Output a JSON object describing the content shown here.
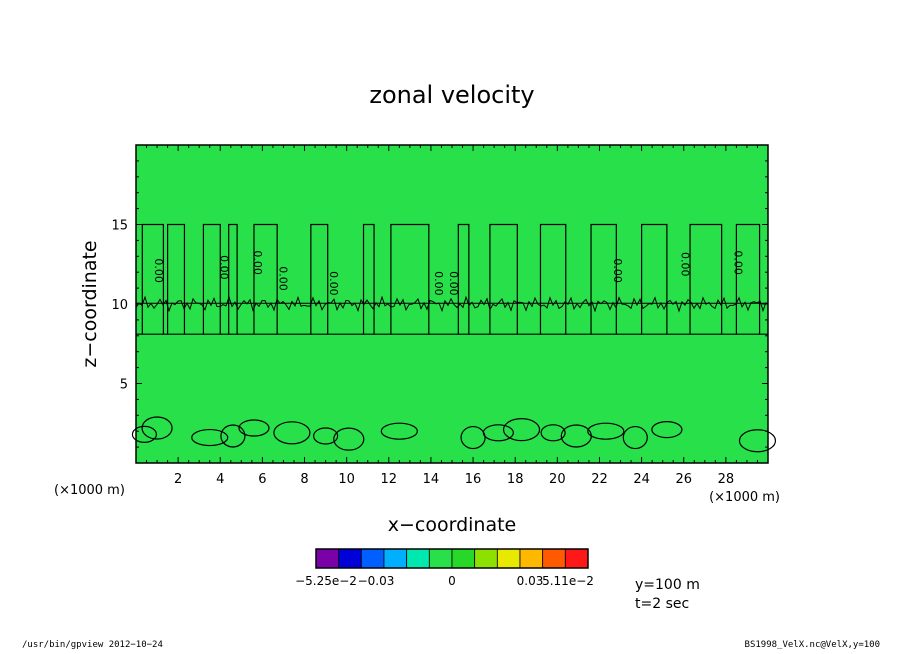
{
  "chart_data": {
    "type": "heatmap",
    "title": "zonal velocity",
    "xlabel": "x−coordinate",
    "ylabel": "z−coordinate",
    "x_unit": "(×1000 m)",
    "x_unit_right": "(×1000 m)",
    "xlim": [
      0,
      30
    ],
    "ylim": [
      0,
      20
    ],
    "xticks": [
      2,
      4,
      6,
      8,
      10,
      12,
      14,
      16,
      18,
      20,
      22,
      24,
      26,
      28
    ],
    "yticks": [
      5,
      10,
      15
    ],
    "contour_labels": [
      "0.00",
      "0.00",
      "0.00",
      "0.00",
      "0.00",
      "0.00",
      "0.00",
      "0.00",
      "0.00",
      "0.00"
    ],
    "colorbar": {
      "levels": [
        "−5.25e−2",
        "−0.03",
        "0",
        "0.03",
        "5.11e−2"
      ],
      "colors": [
        "#7a00a8",
        "#0000d8",
        "#0060ff",
        "#00b0ff",
        "#00e8b0",
        "#2ae04a",
        "#28d828",
        "#8ee000",
        "#e8e800",
        "#ffb800",
        "#ff5a00",
        "#ff1818"
      ]
    },
    "background_color": "#28e04a",
    "annotations": [
      "y=100 m",
      "t=2 sec"
    ]
  },
  "footer": {
    "left": "/usr/bin/gpview   2012−10−24",
    "right": "BS1998_VelX.nc@VelX,y=100"
  }
}
